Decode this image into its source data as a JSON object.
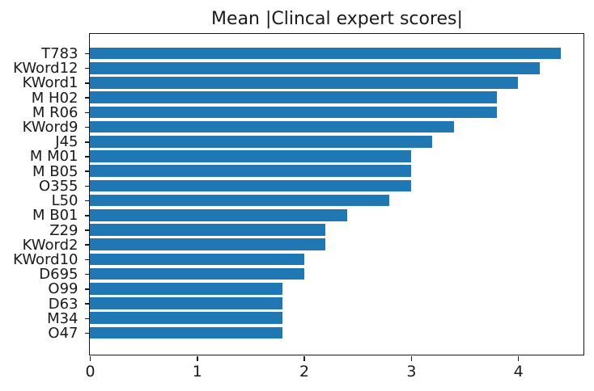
{
  "chart_data": {
    "type": "bar",
    "orientation": "horizontal",
    "title": "Mean |Clincal expert scores|",
    "categories": [
      "T783",
      "KWord12",
      "KWord1",
      "M H02",
      "M R06",
      "KWord9",
      "J45",
      "M M01",
      "M B05",
      "O355",
      "L50",
      "M B01",
      "Z29",
      "KWord2",
      "KWord10",
      "D695",
      "O99",
      "D63",
      "M34",
      "O47"
    ],
    "values": [
      4.4,
      4.2,
      4.0,
      3.8,
      3.8,
      3.4,
      3.2,
      3.0,
      3.0,
      3.0,
      2.8,
      2.4,
      2.2,
      2.2,
      2.0,
      2.0,
      1.8,
      1.8,
      1.8,
      1.8
    ],
    "xlabel": "",
    "ylabel": "",
    "x_ticks": [
      "0",
      "1",
      "2",
      "3",
      "4"
    ],
    "xlim": [
      0,
      4.62
    ],
    "bar_color": "#1f77b4",
    "grid": false,
    "legend": null
  }
}
